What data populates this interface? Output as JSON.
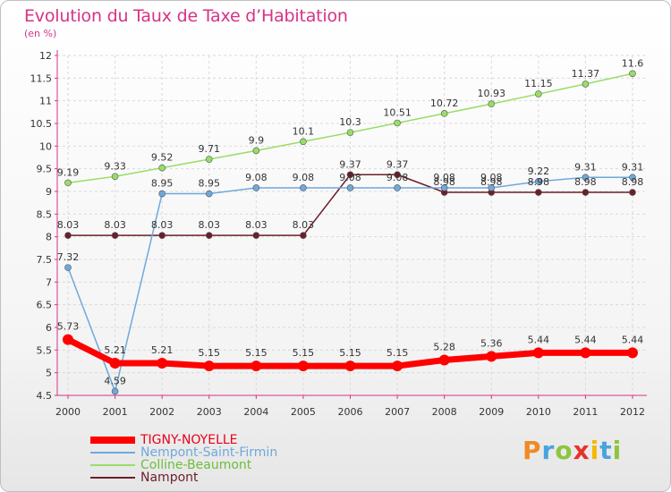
{
  "title": "Evolution du Taux de Taxe d’Habitation",
  "subtitle": "(en %)",
  "logo": {
    "letters": [
      "P",
      "r",
      "o",
      "x",
      "i",
      "t",
      "i"
    ],
    "colors": [
      "#f08a24",
      "#4aa3df",
      "#8cc63f",
      "#e6332a",
      "#f5b800",
      "#4aa3df",
      "#8cc63f"
    ]
  },
  "chart_data": {
    "type": "line",
    "x": [
      "2000",
      "2001",
      "2002",
      "2003",
      "2004",
      "2005",
      "2006",
      "2007",
      "2008",
      "2009",
      "2010",
      "2011",
      "2012"
    ],
    "ylim": [
      4.5,
      12
    ],
    "yticks": [
      "4.5",
      "5",
      "5.5",
      "6",
      "6.5",
      "7",
      "7.5",
      "8",
      "8.5",
      "9",
      "9.5",
      "10",
      "10.5",
      "11",
      "11.5",
      "12"
    ],
    "grid": true,
    "legend_position": "bottom-left",
    "series": [
      {
        "name": "TIGNY-NOYELLE",
        "color": "#ff0000",
        "values": [
          5.73,
          5.21,
          5.21,
          5.15,
          5.15,
          5.15,
          5.15,
          5.15,
          5.28,
          5.36,
          5.44,
          5.44,
          5.44
        ],
        "labels": [
          "5.73",
          "5.21",
          "5.21",
          "5.15",
          "5.15",
          "5.15",
          "5.15",
          "5.15",
          "5.28",
          "5.36",
          "5.44",
          "5.44",
          "5.44"
        ]
      },
      {
        "name": "Nempont-Saint-Firmin",
        "color": "#6fa8dc",
        "values": [
          7.32,
          4.59,
          8.95,
          8.95,
          9.08,
          9.08,
          9.08,
          9.08,
          9.08,
          9.08,
          9.22,
          9.31,
          9.31
        ],
        "labels": [
          "7.32",
          "4.59",
          "8.95",
          "8.95",
          "9.08",
          "9.08",
          "9.08",
          "9.08",
          "9.08",
          "9.08",
          "9.22",
          "9.31",
          "9.31"
        ]
      },
      {
        "name": "Colline-Beaumont",
        "color": "#99dd66",
        "values": [
          9.19,
          9.33,
          9.52,
          9.71,
          9.9,
          10.1,
          10.3,
          10.51,
          10.72,
          10.93,
          11.15,
          11.37,
          11.6
        ],
        "labels": [
          "9.19",
          "9.33",
          "9.52",
          "9.71",
          "9.9",
          "10.1",
          "10.3",
          "10.51",
          "10.72",
          "10.93",
          "11.15",
          "11.37",
          "11.6"
        ]
      },
      {
        "name": "Nampont",
        "color": "#6b1f2a",
        "values": [
          8.03,
          8.03,
          8.03,
          8.03,
          8.03,
          8.03,
          9.37,
          9.37,
          8.98,
          8.98,
          8.98,
          8.98,
          8.98
        ],
        "labels": [
          "8.03",
          "8.03",
          "8.03",
          "8.03",
          "8.03",
          "8.03",
          "9.37",
          "9.37",
          "8.98",
          "8.98",
          "8.98",
          "8.98",
          "8.98"
        ]
      }
    ]
  }
}
